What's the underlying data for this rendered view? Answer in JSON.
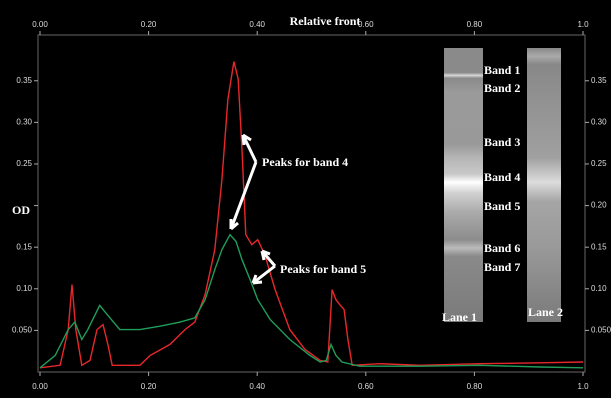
{
  "chart_data": {
    "type": "line",
    "title": "Relative front",
    "ylabel": "OD",
    "xlim": [
      0,
      1
    ],
    "ylim": [
      0,
      0.405
    ],
    "xticks": [
      {
        "value": 0,
        "label": "0.00"
      },
      {
        "value": 0.2,
        "label": "0.20"
      },
      {
        "value": 0.4,
        "label": "0.40"
      },
      {
        "value": 0.6,
        "label": "0.60"
      },
      {
        "value": 0.8,
        "label": "0.80"
      },
      {
        "value": 1,
        "label": "1.0"
      }
    ],
    "yticks": [
      {
        "value": 0.05,
        "label": "0.050"
      },
      {
        "value": 0.1,
        "label": "0.10"
      },
      0.15,
      {
        "value": 0.2,
        "label": "0.20"
      },
      0.25,
      {
        "value": 0.3,
        "label": "0.30"
      },
      0.35
    ],
    "series": [
      {
        "name": "Lane 1",
        "color": "#e8272b",
        "x": [
          0,
          0.037,
          0.052,
          0.059,
          0.066,
          0.077,
          0.092,
          0.105,
          0.116,
          0.125,
          0.133,
          0.184,
          0.203,
          0.239,
          0.267,
          0.285,
          0.304,
          0.322,
          0.335,
          0.346,
          0.357,
          0.365,
          0.372,
          0.379,
          0.39,
          0.401,
          0.414,
          0.433,
          0.46,
          0.488,
          0.516,
          0.53,
          0.538,
          0.545,
          0.552,
          0.56,
          0.567,
          0.575,
          0.626,
          0.7,
          0.81,
          0.921,
          1
        ],
        "values": [
          0.005,
          0.008,
          0.051,
          0.105,
          0.051,
          0.008,
          0.014,
          0.051,
          0.057,
          0.033,
          0.008,
          0.008,
          0.02,
          0.033,
          0.051,
          0.06,
          0.093,
          0.147,
          0.231,
          0.328,
          0.373,
          0.352,
          0.267,
          0.165,
          0.153,
          0.159,
          0.141,
          0.099,
          0.051,
          0.027,
          0.014,
          0.012,
          0.099,
          0.087,
          0.081,
          0.075,
          0.039,
          0.008,
          0.01,
          0.008,
          0.01,
          0.011,
          0.012
        ]
      },
      {
        "name": "Lane 2",
        "color": "#1f9e5a",
        "x": [
          0,
          0.028,
          0.052,
          0.064,
          0.077,
          0.088,
          0.11,
          0.129,
          0.147,
          0.184,
          0.221,
          0.258,
          0.285,
          0.304,
          0.322,
          0.335,
          0.35,
          0.361,
          0.372,
          0.387,
          0.401,
          0.424,
          0.46,
          0.497,
          0.516,
          0.527,
          0.536,
          0.545,
          0.556,
          0.589,
          0.7,
          0.81,
          0.921,
          1
        ],
        "values": [
          0.005,
          0.02,
          0.051,
          0.06,
          0.039,
          0.051,
          0.08,
          0.065,
          0.051,
          0.051,
          0.055,
          0.06,
          0.065,
          0.087,
          0.123,
          0.147,
          0.165,
          0.157,
          0.135,
          0.111,
          0.087,
          0.063,
          0.039,
          0.02,
          0.012,
          0.014,
          0.033,
          0.02,
          0.012,
          0.007,
          0.007,
          0.008,
          0.006,
          0.005
        ]
      }
    ],
    "annotations": [
      "Peaks for band 4",
      "Peaks for band 5"
    ],
    "band_labels": [
      "Band 1",
      "Band 2",
      "Band 3",
      "Band 4",
      "Band 5",
      "Band 6",
      "Band 7"
    ],
    "lane_labels": [
      "Lane 1",
      "Lane 2"
    ]
  }
}
